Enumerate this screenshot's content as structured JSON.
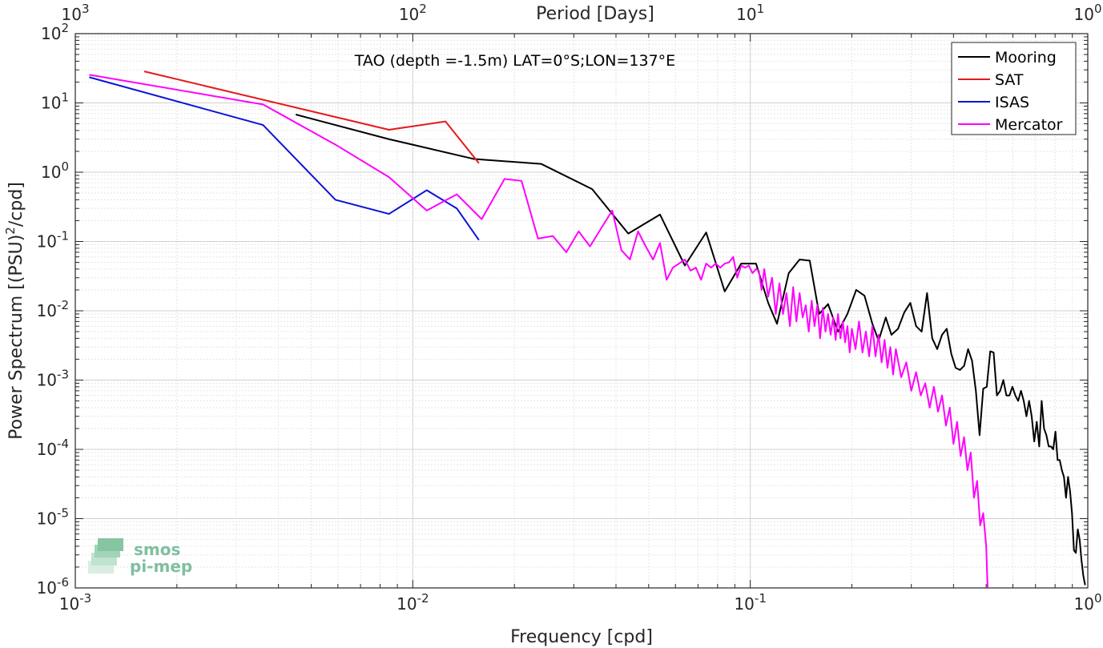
{
  "chart_data": {
    "type": "line",
    "title": "TAO (depth =-1.5m) LAT=0°S;LON=137°E",
    "xlabel": "Frequency [cpd]",
    "ylabel": "Power Spectrum [(PSU)",
    "ylabel_sup": "2",
    "ylabel_tail": "/cpd]",
    "top_xlabel": "Period [Days]",
    "xscale": "log",
    "yscale": "log",
    "xlim": [
      0.001,
      1
    ],
    "ylim": [
      1e-06,
      100
    ],
    "grid": true,
    "legend_position": "top-right",
    "x_ticks": [
      {
        "value": 0.001,
        "base": "10",
        "exp": "-3"
      },
      {
        "value": 0.01,
        "base": "10",
        "exp": "-2"
      },
      {
        "value": 0.1,
        "base": "10",
        "exp": "-1"
      },
      {
        "value": 1,
        "base": "10",
        "exp": "0"
      }
    ],
    "top_ticks": [
      {
        "value": 0.001,
        "base": "10",
        "exp": "3"
      },
      {
        "value": 0.01,
        "base": "10",
        "exp": "2"
      },
      {
        "value": 0.1,
        "base": "10",
        "exp": "1"
      },
      {
        "value": 1,
        "base": "10",
        "exp": "0"
      }
    ],
    "y_ticks": [
      {
        "value": 100,
        "base": "10",
        "exp": "2"
      },
      {
        "value": 10,
        "base": "10",
        "exp": "1"
      },
      {
        "value": 1,
        "base": "10",
        "exp": "0"
      },
      {
        "value": 0.1,
        "base": "10",
        "exp": "-1"
      },
      {
        "value": 0.01,
        "base": "10",
        "exp": "-2"
      },
      {
        "value": 0.001,
        "base": "10",
        "exp": "-3"
      },
      {
        "value": 0.0001,
        "base": "10",
        "exp": "-4"
      },
      {
        "value": 1e-05,
        "base": "10",
        "exp": "-5"
      },
      {
        "value": 1e-06,
        "base": "10",
        "exp": "-6"
      }
    ],
    "series": [
      {
        "name": "Mooring",
        "color": "#000000",
        "points": [
          [
            0.0045,
            6.8
          ],
          [
            0.0085,
            3.0
          ],
          [
            0.0152,
            1.55
          ],
          [
            0.024,
            1.32
          ],
          [
            0.034,
            0.57
          ],
          [
            0.0435,
            0.13
          ],
          [
            0.054,
            0.245
          ],
          [
            0.064,
            0.045
          ],
          [
            0.074,
            0.135
          ],
          [
            0.084,
            0.019
          ],
          [
            0.094,
            0.048
          ],
          [
            0.104,
            0.048
          ],
          [
            0.113,
            0.013
          ],
          [
            0.12,
            0.0065
          ],
          [
            0.13,
            0.035
          ],
          [
            0.14,
            0.055
          ],
          [
            0.15,
            0.053
          ],
          [
            0.16,
            0.009
          ],
          [
            0.17,
            0.0125
          ],
          [
            0.182,
            0.005
          ],
          [
            0.194,
            0.009
          ],
          [
            0.206,
            0.02
          ],
          [
            0.218,
            0.0165
          ],
          [
            0.23,
            0.0065
          ],
          [
            0.24,
            0.0037
          ],
          [
            0.252,
            0.008
          ],
          [
            0.262,
            0.0045
          ],
          [
            0.274,
            0.0055
          ],
          [
            0.286,
            0.0095
          ],
          [
            0.298,
            0.013
          ],
          [
            0.31,
            0.006
          ],
          [
            0.322,
            0.005
          ],
          [
            0.334,
            0.018
          ],
          [
            0.346,
            0.004
          ],
          [
            0.358,
            0.0028
          ],
          [
            0.37,
            0.0045
          ],
          [
            0.382,
            0.0055
          ],
          [
            0.394,
            0.0024
          ],
          [
            0.406,
            0.0015
          ],
          [
            0.418,
            0.0014
          ],
          [
            0.43,
            0.0016
          ],
          [
            0.442,
            0.0028
          ],
          [
            0.454,
            0.0019
          ],
          [
            0.466,
            0.0007
          ],
          [
            0.478,
            0.00016
          ],
          [
            0.49,
            0.00075
          ],
          [
            0.502,
            0.0008
          ],
          [
            0.514,
            0.0026
          ],
          [
            0.526,
            0.0025
          ],
          [
            0.538,
            0.0006
          ],
          [
            0.55,
            0.0007
          ],
          [
            0.562,
            0.001
          ],
          [
            0.574,
            0.0006
          ],
          [
            0.586,
            0.0006
          ],
          [
            0.598,
            0.0008
          ],
          [
            0.61,
            0.0006
          ],
          [
            0.622,
            0.0005
          ],
          [
            0.634,
            0.0007
          ],
          [
            0.646,
            0.0005
          ],
          [
            0.658,
            0.0003
          ],
          [
            0.67,
            0.0005
          ],
          [
            0.682,
            0.0003
          ],
          [
            0.694,
            0.00013
          ],
          [
            0.706,
            0.00025
          ],
          [
            0.718,
            0.00011
          ],
          [
            0.73,
            0.0005
          ],
          [
            0.742,
            0.0002
          ],
          [
            0.754,
            0.00016
          ],
          [
            0.766,
            0.00011
          ],
          [
            0.778,
            0.00011
          ],
          [
            0.79,
            0.0001
          ],
          [
            0.802,
            0.00018
          ],
          [
            0.814,
            7e-05
          ],
          [
            0.826,
            7e-05
          ],
          [
            0.838,
            5e-05
          ],
          [
            0.85,
            4e-05
          ],
          [
            0.862,
            2e-05
          ],
          [
            0.874,
            4e-05
          ],
          [
            0.886,
            2.5e-05
          ],
          [
            0.898,
            1.2e-05
          ],
          [
            0.91,
            3.5e-06
          ],
          [
            0.922,
            3.2e-06
          ],
          [
            0.934,
            7e-06
          ],
          [
            0.946,
            5e-06
          ],
          [
            0.958,
            2.5e-06
          ],
          [
            0.97,
            1.5e-06
          ],
          [
            0.982,
            1.1e-06
          ]
        ]
      },
      {
        "name": "SAT",
        "color": "#e41a1c",
        "points": [
          [
            0.0016,
            28.5
          ],
          [
            0.0085,
            4.1
          ],
          [
            0.0125,
            5.4
          ],
          [
            0.0157,
            1.35
          ]
        ]
      },
      {
        "name": "ISAS",
        "color": "#0a14d6",
        "points": [
          [
            0.0011,
            23.5
          ],
          [
            0.0036,
            4.8
          ],
          [
            0.0059,
            0.4
          ],
          [
            0.0085,
            0.25
          ],
          [
            0.011,
            0.55
          ],
          [
            0.0135,
            0.3
          ],
          [
            0.0157,
            0.105
          ]
        ]
      },
      {
        "name": "Mercator",
        "color": "#ff00ff",
        "points": [
          [
            0.0011,
            25.5
          ],
          [
            0.0036,
            9.5
          ],
          [
            0.0059,
            2.5
          ],
          [
            0.0085,
            0.85
          ],
          [
            0.011,
            0.28
          ],
          [
            0.0135,
            0.48
          ],
          [
            0.016,
            0.21
          ],
          [
            0.0187,
            0.8
          ],
          [
            0.021,
            0.75
          ],
          [
            0.0235,
            0.11
          ],
          [
            0.026,
            0.12
          ],
          [
            0.0285,
            0.07
          ],
          [
            0.031,
            0.14
          ],
          [
            0.0335,
            0.085
          ],
          [
            0.036,
            0.15
          ],
          [
            0.039,
            0.28
          ],
          [
            0.0415,
            0.075
          ],
          [
            0.044,
            0.055
          ],
          [
            0.0465,
            0.14
          ],
          [
            0.049,
            0.085
          ],
          [
            0.0515,
            0.055
          ],
          [
            0.054,
            0.095
          ],
          [
            0.0565,
            0.028
          ],
          [
            0.059,
            0.042
          ],
          [
            0.0615,
            0.048
          ],
          [
            0.064,
            0.055
          ],
          [
            0.0665,
            0.038
          ],
          [
            0.069,
            0.042
          ],
          [
            0.0715,
            0.028
          ],
          [
            0.074,
            0.048
          ],
          [
            0.0765,
            0.042
          ],
          [
            0.079,
            0.048
          ],
          [
            0.0815,
            0.042
          ],
          [
            0.084,
            0.048
          ],
          [
            0.0865,
            0.05
          ],
          [
            0.089,
            0.06
          ],
          [
            0.0915,
            0.03
          ],
          [
            0.094,
            0.045
          ],
          [
            0.0965,
            0.042
          ],
          [
            0.099,
            0.045
          ],
          [
            0.1015,
            0.035
          ],
          [
            0.104,
            0.04
          ],
          [
            0.106,
            0.038
          ],
          [
            0.108,
            0.02
          ],
          [
            0.11,
            0.04
          ],
          [
            0.113,
            0.016
          ],
          [
            0.116,
            0.03
          ],
          [
            0.119,
            0.009
          ],
          [
            0.122,
            0.025
          ],
          [
            0.125,
            0.009
          ],
          [
            0.128,
            0.018
          ],
          [
            0.131,
            0.006
          ],
          [
            0.134,
            0.022
          ],
          [
            0.137,
            0.007
          ],
          [
            0.14,
            0.018
          ],
          [
            0.143,
            0.008
          ],
          [
            0.146,
            0.012
          ],
          [
            0.149,
            0.005
          ],
          [
            0.152,
            0.014
          ],
          [
            0.155,
            0.006
          ],
          [
            0.158,
            0.012
          ],
          [
            0.161,
            0.004
          ],
          [
            0.164,
            0.011
          ],
          [
            0.167,
            0.005
          ],
          [
            0.17,
            0.009
          ],
          [
            0.173,
            0.0045
          ],
          [
            0.176,
            0.008
          ],
          [
            0.179,
            0.0038
          ],
          [
            0.182,
            0.009
          ],
          [
            0.185,
            0.004
          ],
          [
            0.188,
            0.007
          ],
          [
            0.191,
            0.0035
          ],
          [
            0.194,
            0.006
          ],
          [
            0.197,
            0.0025
          ],
          [
            0.2,
            0.0055
          ],
          [
            0.205,
            0.0028
          ],
          [
            0.21,
            0.007
          ],
          [
            0.215,
            0.0025
          ],
          [
            0.22,
            0.005
          ],
          [
            0.225,
            0.0022
          ],
          [
            0.23,
            0.006
          ],
          [
            0.235,
            0.0022
          ],
          [
            0.24,
            0.0045
          ],
          [
            0.245,
            0.0018
          ],
          [
            0.25,
            0.0038
          ],
          [
            0.255,
            0.0015
          ],
          [
            0.26,
            0.003
          ],
          [
            0.265,
            0.0012
          ],
          [
            0.27,
            0.0028
          ],
          [
            0.28,
            0.0011
          ],
          [
            0.29,
            0.0018
          ],
          [
            0.3,
            0.0007
          ],
          [
            0.31,
            0.0013
          ],
          [
            0.32,
            0.0006
          ],
          [
            0.33,
            0.0009
          ],
          [
            0.34,
            0.0004
          ],
          [
            0.35,
            0.0008
          ],
          [
            0.36,
            0.00035
          ],
          [
            0.37,
            0.0006
          ],
          [
            0.38,
            0.00022
          ],
          [
            0.39,
            0.0004
          ],
          [
            0.4,
            0.00012
          ],
          [
            0.41,
            0.00025
          ],
          [
            0.42,
            8e-05
          ],
          [
            0.43,
            0.00015
          ],
          [
            0.44,
            5e-05
          ],
          [
            0.45,
            9e-05
          ],
          [
            0.46,
            2e-05
          ],
          [
            0.47,
            3.5e-05
          ],
          [
            0.48,
            8e-06
          ],
          [
            0.49,
            1.2e-05
          ],
          [
            0.5,
            4e-06
          ],
          [
            0.505,
            1e-06
          ]
        ]
      }
    ]
  },
  "logo": {
    "line1": "smos",
    "line2": "pi-mep"
  }
}
